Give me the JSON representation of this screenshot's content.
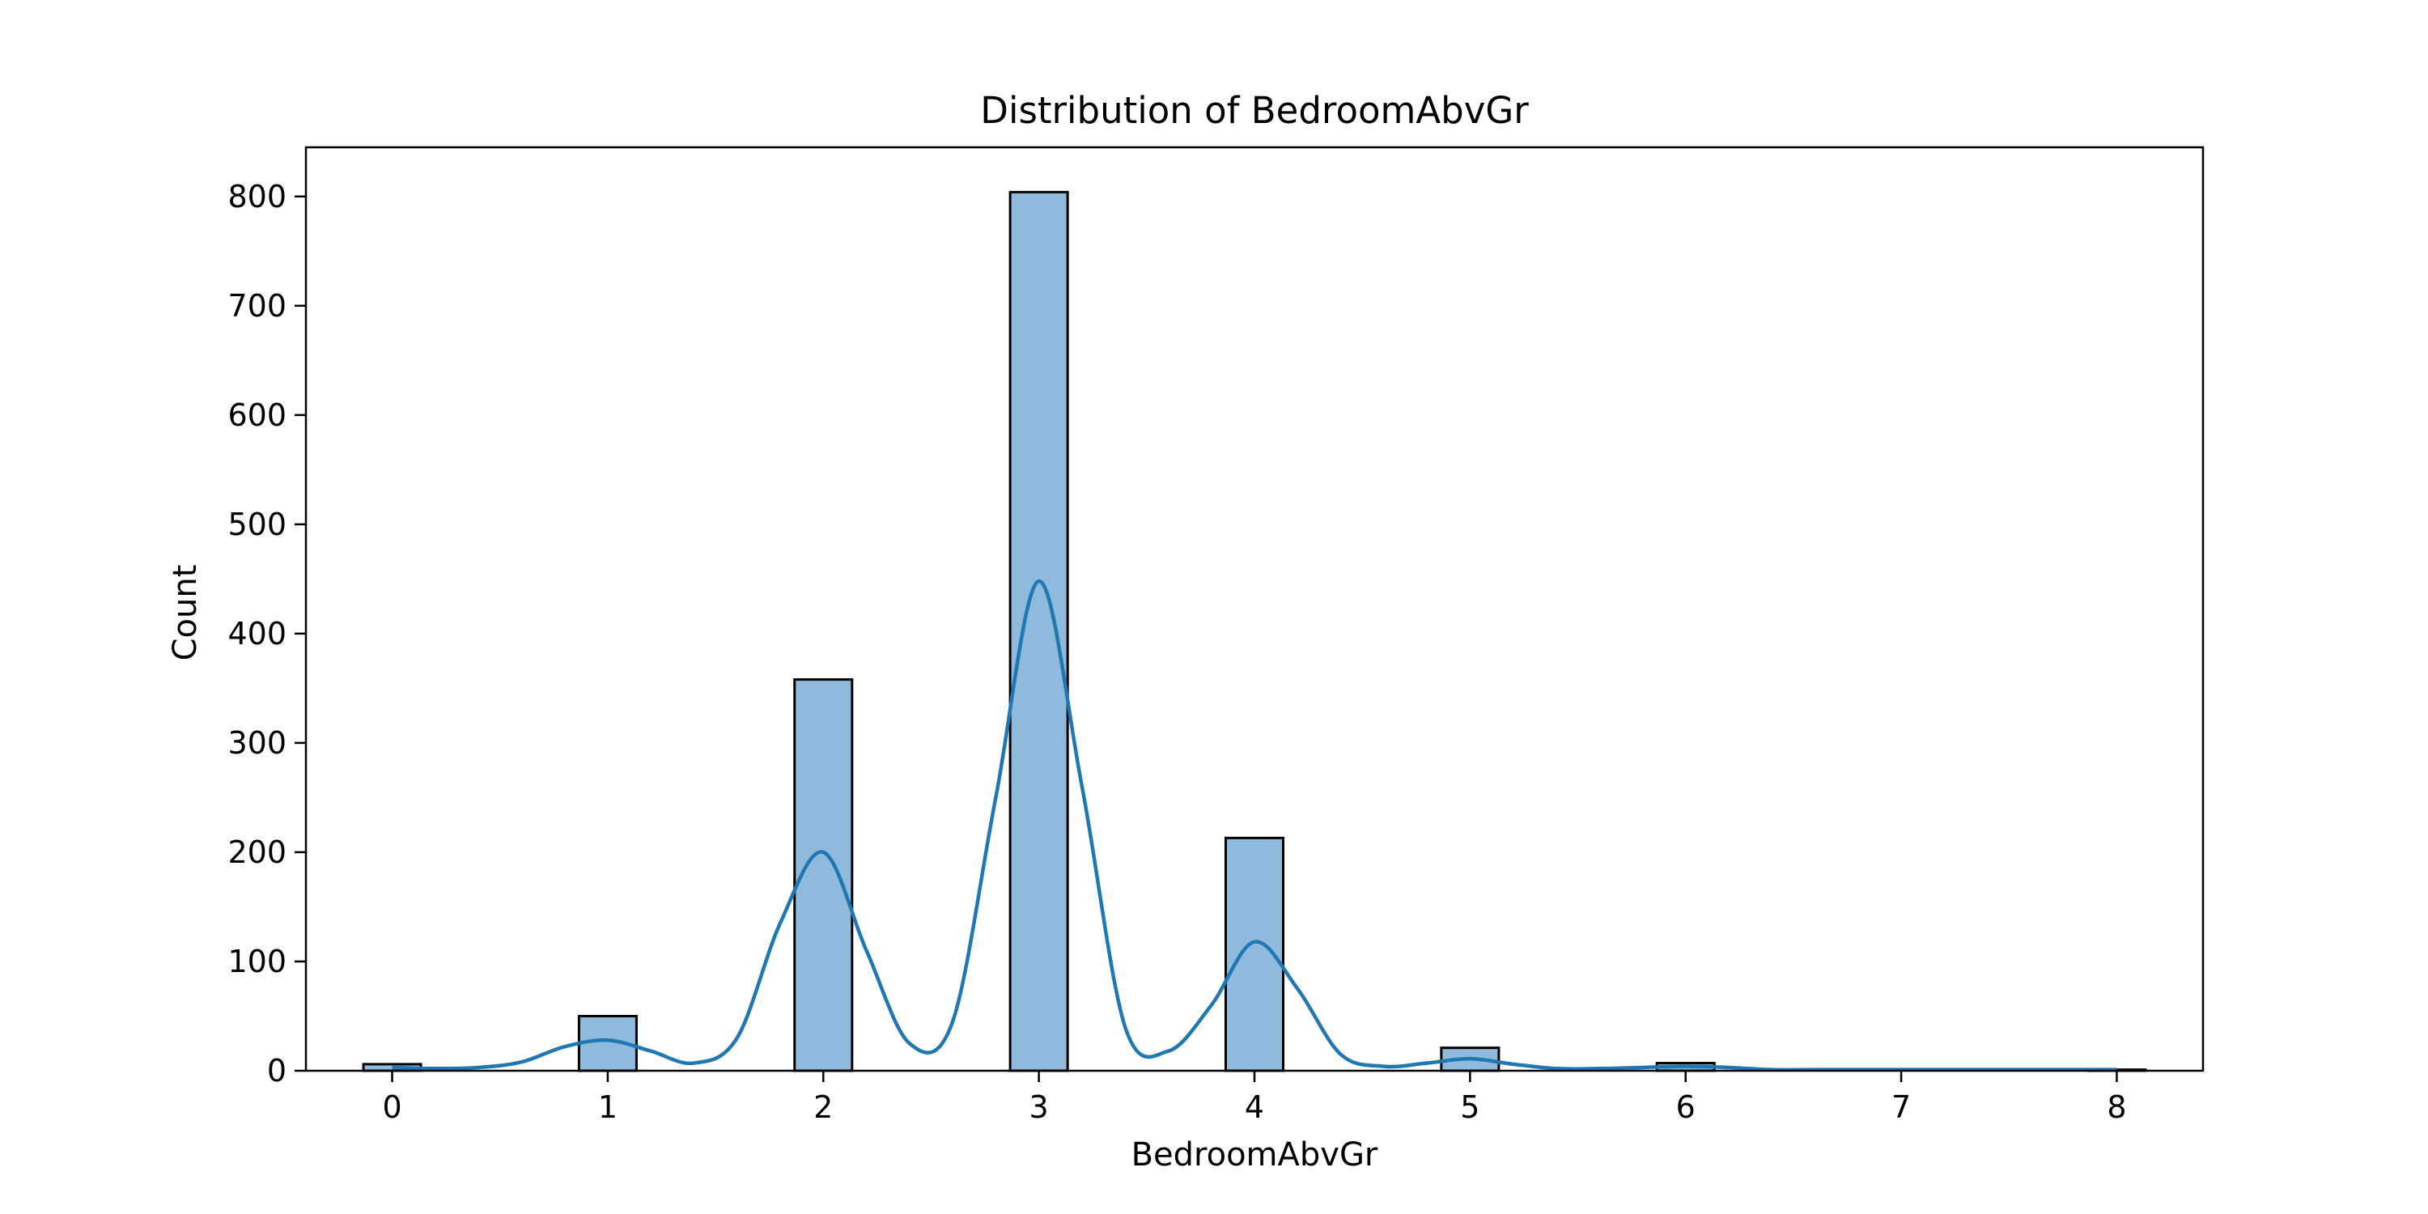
{
  "chart_data": {
    "type": "bar",
    "title": "Distribution of BedroomAbvGr",
    "xlabel": "BedroomAbvGr",
    "ylabel": "Count",
    "xlim": [
      -0.4,
      8.4
    ],
    "ylim": [
      0,
      845
    ],
    "x_ticks": [
      0,
      1,
      2,
      3,
      4,
      5,
      6,
      7,
      8
    ],
    "y_ticks": [
      0,
      100,
      200,
      300,
      400,
      500,
      600,
      700,
      800
    ],
    "bin_width": 0.2667,
    "bars": [
      {
        "x": 0,
        "count": 6
      },
      {
        "x": 1,
        "count": 50
      },
      {
        "x": 2,
        "count": 358
      },
      {
        "x": 3,
        "count": 804
      },
      {
        "x": 4,
        "count": 213
      },
      {
        "x": 5,
        "count": 21
      },
      {
        "x": 6,
        "count": 7
      },
      {
        "x": 8,
        "count": 1
      }
    ],
    "kde": {
      "x": [
        0,
        0.2,
        0.4,
        0.6,
        0.8,
        1.0,
        1.2,
        1.4,
        1.6,
        1.8,
        2.0,
        2.2,
        2.4,
        2.6,
        2.8,
        3.0,
        3.2,
        3.4,
        3.6,
        3.8,
        4.0,
        4.2,
        4.4,
        4.6,
        4.8,
        5.0,
        5.2,
        5.4,
        5.6,
        5.8,
        6.0,
        6.2,
        6.4,
        6.6,
        7.0,
        7.5,
        8.0
      ],
      "y": [
        3,
        2,
        3,
        8,
        22,
        28,
        18,
        7,
        30,
        135,
        200,
        110,
        25,
        45,
        250,
        448,
        260,
        40,
        18,
        60,
        118,
        75,
        15,
        4,
        7,
        11,
        6,
        2,
        2,
        3,
        4,
        3,
        1,
        1,
        1,
        1,
        1
      ]
    },
    "colors": {
      "bar_fill": "#8fbadb",
      "bar_edge": "#000000",
      "kde_line": "#1f77b4"
    },
    "grid": false,
    "legend": "none"
  }
}
